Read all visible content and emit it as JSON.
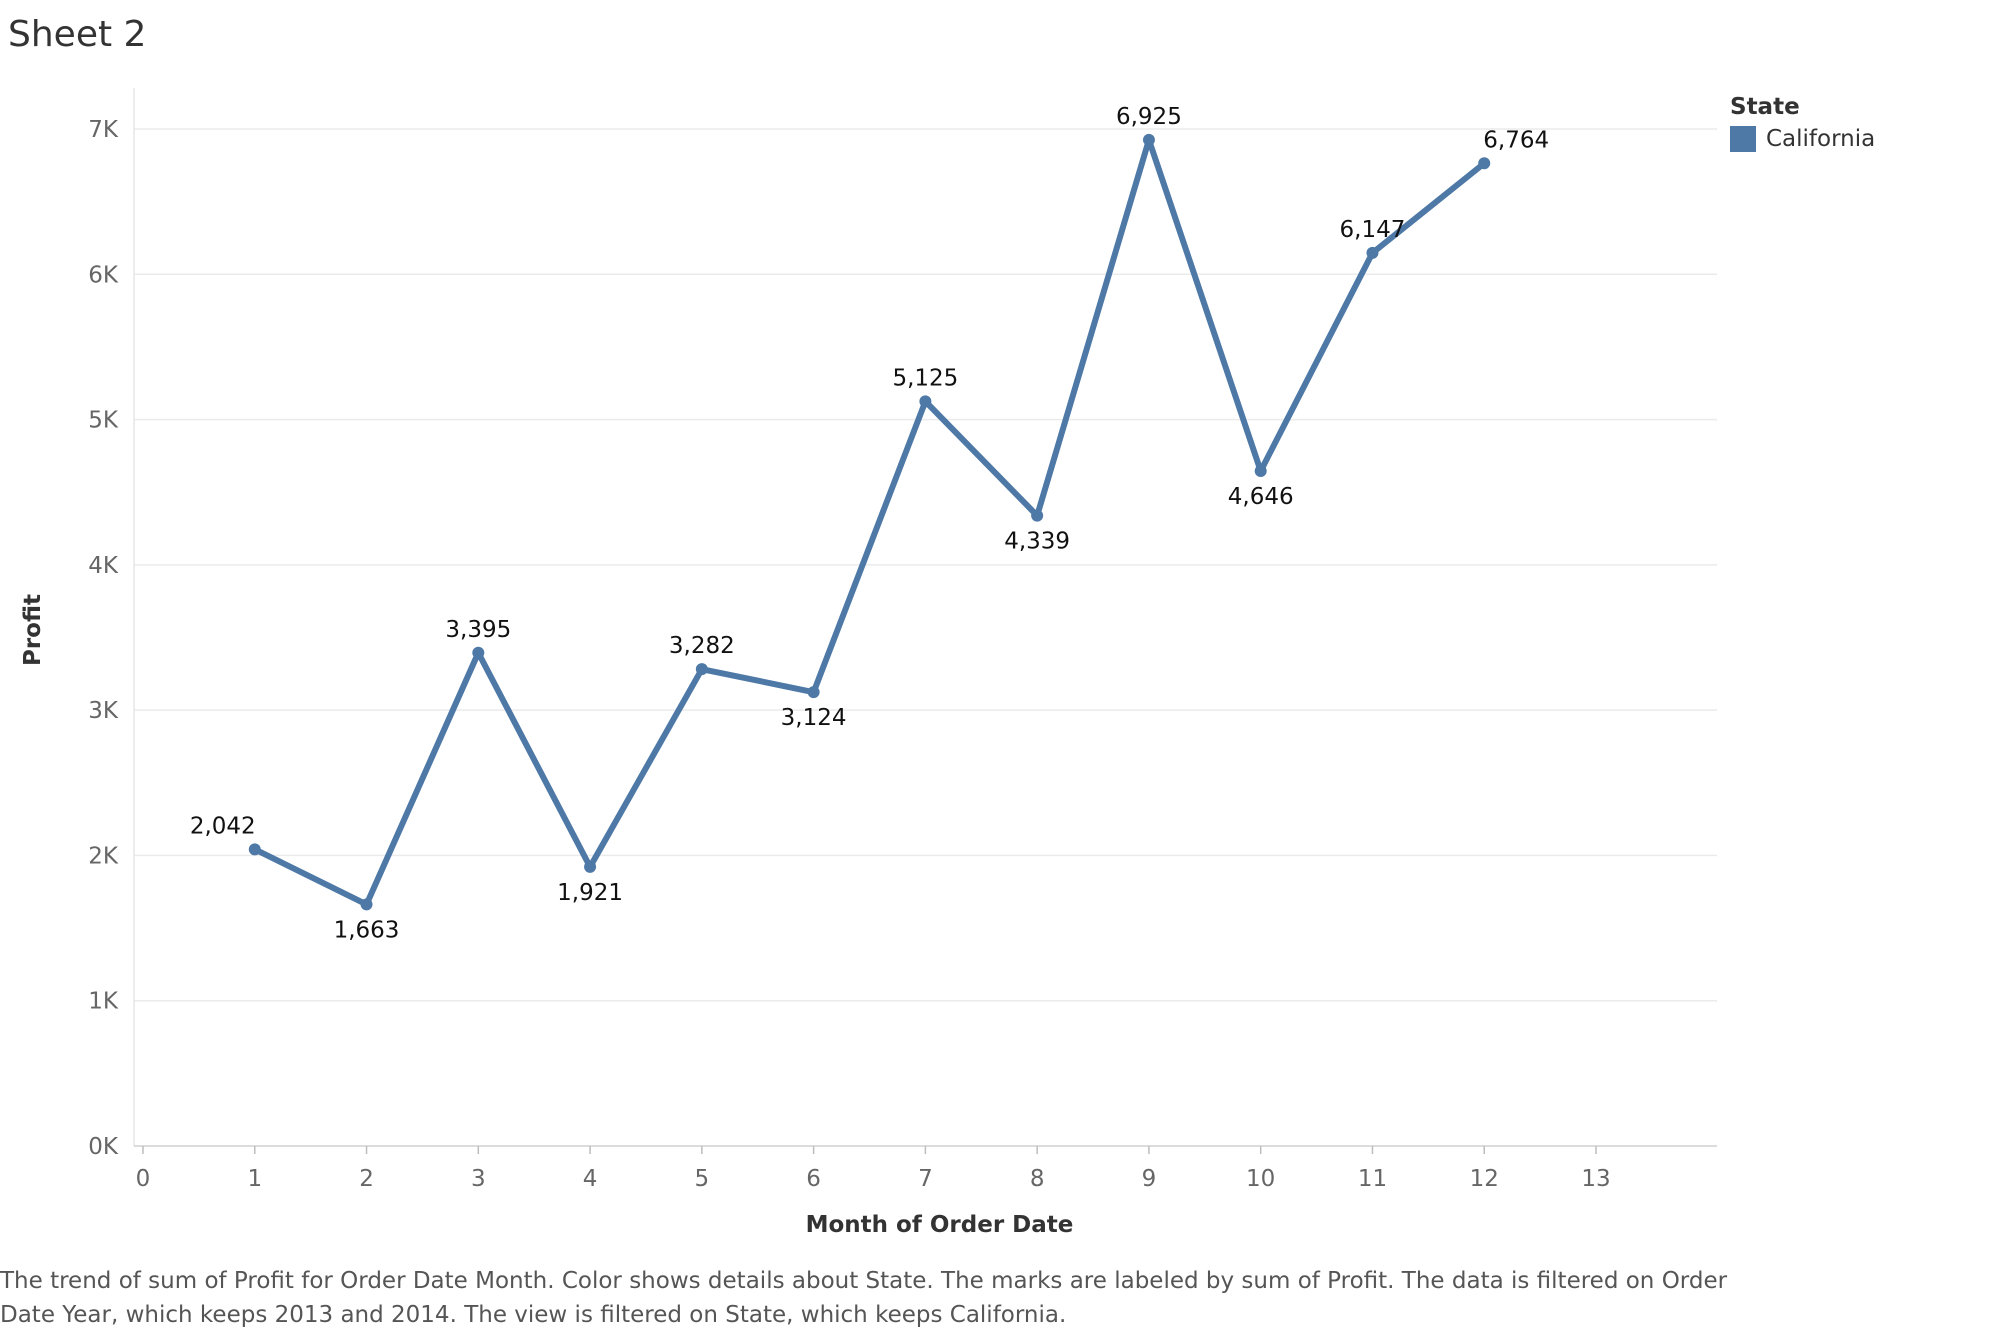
{
  "sheet": {
    "title": "Sheet 2",
    "caption": "The trend of sum of Profit for Order Date Month.  Color shows details about State.  The marks are labeled by sum of Profit. The data is filtered on Order Date Year, which keeps 2013 and 2014. The view is filtered on State, which keeps California."
  },
  "legend": {
    "title": "State",
    "items": [
      {
        "label": "California",
        "color": "#4e79a7"
      }
    ]
  },
  "chart_data": {
    "type": "line",
    "xlabel": "Month of Order Date",
    "ylabel": "Profit",
    "xlim": [
      0,
      13
    ],
    "ylim": [
      0,
      7000
    ],
    "x_ticks": [
      0,
      1,
      2,
      3,
      4,
      5,
      6,
      7,
      8,
      9,
      10,
      11,
      12,
      13
    ],
    "x_tick_labels": [
      "0",
      "1",
      "2",
      "3",
      "4",
      "5",
      "6",
      "7",
      "8",
      "9",
      "10",
      "11",
      "12",
      "13"
    ],
    "y_ticks": [
      0,
      1000,
      2000,
      3000,
      4000,
      5000,
      6000,
      7000
    ],
    "y_tick_labels": [
      "0K",
      "1K",
      "2K",
      "3K",
      "4K",
      "5K",
      "6K",
      "7K"
    ],
    "grid": true,
    "legend_position": "top-right",
    "series": [
      {
        "name": "California",
        "color": "#4e79a7",
        "x": [
          1,
          2,
          3,
          4,
          5,
          6,
          7,
          8,
          9,
          10,
          11,
          12
        ],
        "values": [
          2042,
          1663,
          3395,
          1921,
          3282,
          3124,
          5125,
          4339,
          6925,
          4646,
          6147,
          6764
        ],
        "data_labels": [
          "2,042",
          "1,663",
          "3,395",
          "1,921",
          "3,282",
          "3,124",
          "5,125",
          "4,339",
          "6,925",
          "4,646",
          "6,147",
          "6,764"
        ]
      }
    ]
  }
}
